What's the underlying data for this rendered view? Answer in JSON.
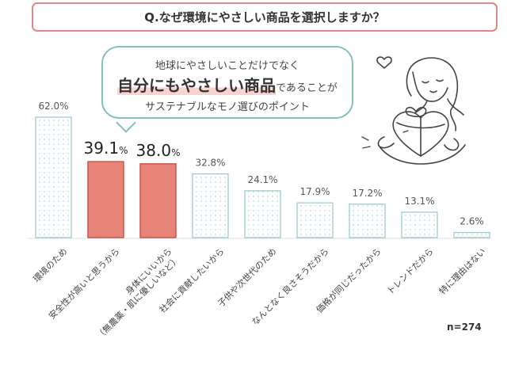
{
  "header": {
    "question": "Q.なぜ環境にやさしい商品を選択しますか？"
  },
  "bubble": {
    "line1": "地球にやさしいことだけでなく",
    "line2_strong": "自分にもやさしい商品",
    "line2_rest": "であることが",
    "line3": "サステナブルなモノ選びのポイント"
  },
  "sample_size": "n=274",
  "colors": {
    "highlight": "#e8837a",
    "base_bar_border": "#8fcfb0",
    "title_border": "#e08a84",
    "accent_green": "#7fc6a8"
  },
  "chart_data": {
    "type": "bar",
    "title": "Q.なぜ環境にやさしい商品を選択しますか？",
    "unit": "%",
    "categories": [
      "環境のため",
      "安全性が高いと思うから",
      "身体にいいから（無農薬・肌に優しいなど）",
      "社会に貢献したいから",
      "子供や次世代のため",
      "なんとなく良さそうだから",
      "価格が同じだったから",
      "トレンドだから",
      "特に理由はない"
    ],
    "category_lines": [
      [
        "環境のため"
      ],
      [
        "安全性が高いと思うから"
      ],
      [
        "身体にいいから",
        "（無農薬・肌に優しいなど）"
      ],
      [
        "社会に貢献したいから"
      ],
      [
        "子供や次世代のため"
      ],
      [
        "なんとなく良さそうだから"
      ],
      [
        "価格が同じだったから"
      ],
      [
        "トレンドだから"
      ],
      [
        "特に理由はない"
      ]
    ],
    "values": [
      62.0,
      39.1,
      38.0,
      32.8,
      24.1,
      17.9,
      17.2,
      13.1,
      2.6
    ],
    "value_labels": [
      "62.0%",
      "39.1%",
      "38.0%",
      "32.8%",
      "24.1%",
      "17.9%",
      "17.2%",
      "13.1%",
      "2.6%"
    ],
    "highlighted": [
      false,
      true,
      true,
      false,
      false,
      false,
      false,
      false,
      false
    ],
    "ylim": [
      0,
      65
    ],
    "grid": false,
    "legend": "none"
  }
}
